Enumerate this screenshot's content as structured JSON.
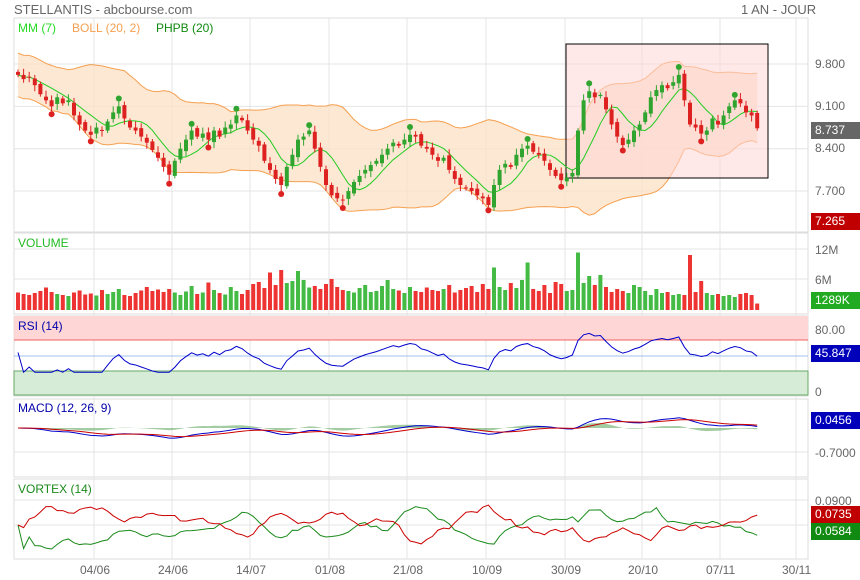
{
  "header": {
    "title": "STELLANTIS - abcbourse.com",
    "period": "1 AN - JOUR"
  },
  "legend": {
    "mm": "MM (7)",
    "boll": "BOLL (20, 2)",
    "phpb": "PHPB (20)"
  },
  "panels": {
    "volume": "VOLUME",
    "rsi": "RSI (14)",
    "macd": "MACD (12, 26, 9)",
    "vortex": "VORTEX (14)"
  },
  "colors": {
    "up": "#2fa52f",
    "down": "#dd2020",
    "mm": "#22cc22",
    "boll": "#f5a050",
    "rsi": "#0000cc",
    "vi_plus": "#1a8a1a",
    "vi_minus": "#cc0000"
  },
  "badges": {
    "last": "8.737",
    "low": "7.265",
    "volume": "1289K",
    "rsi": "45.847",
    "macd": "0.0456",
    "vi_minus": "0.0735",
    "vi_plus": "0.0584"
  },
  "chart_data": {
    "type": "candlestick",
    "price_ticks": [
      "9.800",
      "9.100",
      "8.400",
      "7.700"
    ],
    "price_tick_values": [
      9.8,
      9.1,
      8.4,
      7.7
    ],
    "volume_ticks": [
      "12M",
      "6M"
    ],
    "rsi_ticks": [
      "80.00",
      "0"
    ],
    "macd_ticks": [
      "-0.7000"
    ],
    "vortex_ticks": [
      "0.0900"
    ],
    "x_labels": [
      "04/06",
      "24/06",
      "14/07",
      "01/08",
      "21/08",
      "10/09",
      "30/09",
      "20/10",
      "07/11",
      "30/11"
    ],
    "close": [
      9.62,
      9.55,
      9.58,
      9.45,
      9.3,
      9.2,
      9.1,
      9.25,
      9.15,
      9.2,
      8.95,
      8.8,
      8.7,
      8.63,
      8.75,
      8.7,
      8.85,
      9.0,
      9.1,
      8.9,
      8.75,
      8.7,
      8.6,
      8.5,
      8.38,
      8.25,
      8.1,
      7.97,
      8.2,
      8.4,
      8.55,
      8.7,
      8.6,
      8.65,
      8.55,
      8.7,
      8.6,
      8.75,
      8.8,
      8.95,
      8.87,
      8.7,
      8.55,
      8.45,
      8.2,
      8.05,
      7.9,
      7.8,
      8.1,
      8.3,
      8.55,
      8.6,
      8.7,
      8.4,
      8.1,
      7.8,
      7.63,
      7.58,
      7.55,
      7.7,
      7.85,
      7.95,
      8.05,
      8.13,
      8.2,
      8.3,
      8.4,
      8.5,
      8.45,
      8.55,
      8.63,
      8.6,
      8.45,
      8.4,
      8.3,
      8.2,
      8.25,
      8.05,
      7.9,
      7.8,
      7.75,
      7.7,
      7.63,
      7.58,
      7.47,
      7.8,
      8.05,
      8.15,
      8.1,
      8.3,
      8.4,
      8.45,
      8.35,
      8.3,
      8.2,
      8.05,
      7.95,
      7.88,
      7.92,
      8.0,
      8.7,
      9.2,
      9.35,
      9.25,
      9.29,
      9.05,
      8.8,
      8.6,
      8.46,
      8.55,
      8.7,
      8.8,
      9.0,
      9.25,
      9.37,
      9.45,
      9.4,
      9.5,
      9.62,
      9.2,
      8.8,
      8.75,
      8.65,
      8.7,
      8.9,
      8.8,
      8.95,
      9.1,
      9.2,
      9.15,
      9.0,
      8.95,
      8.737
    ],
    "volume_millions": [
      3.5,
      3.2,
      3.0,
      3.4,
      3.8,
      4.5,
      3.6,
      3.2,
      3.0,
      2.8,
      3.5,
      3.9,
      3.1,
      3.3,
      2.9,
      4.0,
      3.2,
      3.6,
      4.2,
      3.0,
      2.8,
      3.4,
      3.9,
      4.6,
      3.8,
      4.1,
      3.6,
      4.2,
      3.5,
      3.0,
      3.7,
      4.8,
      3.2,
      3.5,
      5.5,
      4.0,
      3.4,
      3.1,
      4.6,
      3.8,
      3.2,
      4.0,
      5.2,
      5.6,
      4.4,
      7.5,
      5.0,
      8.0,
      5.4,
      5.8,
      7.8,
      6.0,
      4.5,
      4.8,
      4.2,
      5.2,
      6.2,
      4.6,
      4.0,
      3.8,
      3.5,
      4.4,
      5.0,
      3.6,
      3.8,
      4.8,
      6.0,
      4.2,
      3.9,
      3.4,
      4.6,
      3.8,
      3.6,
      4.5,
      4.0,
      3.8,
      4.2,
      5.0,
      3.5,
      4.0,
      4.4,
      4.8,
      3.6,
      5.2,
      4.2,
      8.5,
      4.6,
      4.0,
      5.4,
      4.4,
      6.0,
      9.5,
      4.2,
      3.8,
      5.0,
      3.4,
      5.6,
      5.2,
      3.8,
      4.0,
      11.5,
      5.4,
      6.8,
      5.0,
      7.0,
      4.6,
      3.6,
      4.2,
      3.8,
      3.4,
      5.0,
      4.6,
      3.8,
      3.0,
      4.2,
      3.4,
      3.6,
      3.0,
      3.2,
      3.0,
      11.0,
      3.6,
      5.8,
      3.4,
      3.0,
      3.2,
      2.8,
      3.0,
      2.6,
      3.2,
      3.4,
      3.0,
      1.289
    ]
  }
}
